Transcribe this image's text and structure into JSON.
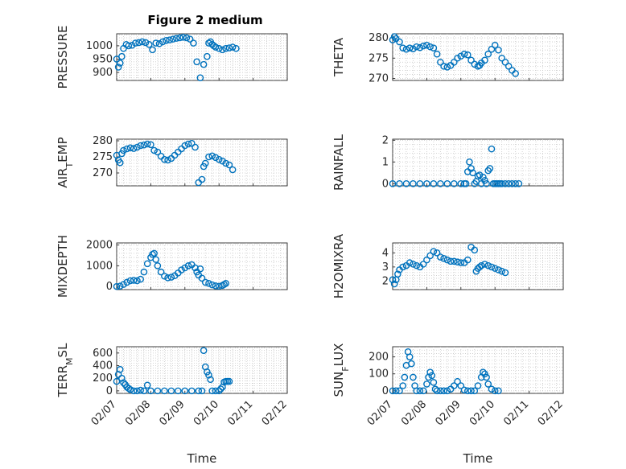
{
  "title": "Figure 2 medium",
  "xlabel": "Time",
  "marker_color": "#0072bd",
  "x_tick_labels": [
    "02/07",
    "02/08",
    "02/09",
    "02/10",
    "02/11",
    "02/12"
  ],
  "chart_data": [
    {
      "type": "scatter",
      "ylabel": "PRESSURE",
      "ylim": [
        870,
        1045
      ],
      "yticks": [
        900,
        950,
        1000
      ],
      "grid": true,
      "x": [
        0.0,
        0.05,
        0.1,
        0.15,
        0.2,
        0.28,
        0.35,
        0.45,
        0.55,
        0.65,
        0.75,
        0.85,
        0.95,
        1.05,
        1.15,
        1.25,
        1.35,
        1.45,
        1.55,
        1.65,
        1.75,
        1.85,
        1.95,
        2.05,
        2.15,
        2.25,
        2.35,
        2.45,
        2.55,
        2.65,
        2.7,
        2.75,
        2.8,
        2.85,
        2.9,
        3.0,
        3.1,
        3.2,
        3.3,
        3.4,
        3.5
      ],
      "y": [
        950,
        920,
        935,
        960,
        990,
        1005,
        1000,
        1002,
        1010,
        1012,
        1015,
        1012,
        1005,
        985,
        1010,
        1008,
        1015,
        1020,
        1022,
        1025,
        1028,
        1030,
        1032,
        1030,
        1025,
        1010,
        940,
        880,
        930,
        960,
        1010,
        1015,
        1005,
        1000,
        995,
        990,
        985,
        990,
        992,
        995,
        990
      ]
    },
    {
      "type": "scatter",
      "ylabel": "THETA",
      "ylim": [
        269.5,
        281
      ],
      "yticks": [
        270,
        275,
        280
      ],
      "grid": true,
      "x": [
        0.0,
        0.05,
        0.1,
        0.2,
        0.3,
        0.4,
        0.5,
        0.6,
        0.7,
        0.8,
        0.9,
        1.0,
        1.1,
        1.2,
        1.3,
        1.4,
        1.5,
        1.6,
        1.7,
        1.8,
        1.9,
        2.0,
        2.1,
        2.2,
        2.3,
        2.4,
        2.5,
        2.55,
        2.6,
        2.7,
        2.8,
        2.9,
        3.0,
        3.1,
        3.2,
        3.3,
        3.4,
        3.5,
        3.6
      ],
      "y": [
        279.5,
        280.3,
        279.8,
        279,
        277.5,
        277.2,
        277.5,
        277.3,
        277.8,
        277.6,
        278,
        278.2,
        277.8,
        277.5,
        276,
        274,
        273,
        272.8,
        273.2,
        274,
        275,
        275.5,
        276,
        275.8,
        274.5,
        273.5,
        273,
        273.2,
        273.8,
        274.5,
        276,
        277.2,
        278.2,
        277,
        275,
        274,
        273,
        272,
        271.2
      ]
    },
    {
      "type": "scatter",
      "ylabel": "AIR_TEMP",
      "ylim": [
        266,
        280.5
      ],
      "yticks": [
        270,
        275,
        280
      ],
      "grid": true,
      "x": [
        0.0,
        0.05,
        0.1,
        0.15,
        0.2,
        0.3,
        0.4,
        0.5,
        0.6,
        0.7,
        0.8,
        0.9,
        1.0,
        1.1,
        1.2,
        1.3,
        1.4,
        1.5,
        1.6,
        1.7,
        1.8,
        1.9,
        2.0,
        2.1,
        2.2,
        2.3,
        2.4,
        2.5,
        2.55,
        2.6,
        2.7,
        2.8,
        2.9,
        3.0,
        3.1,
        3.2,
        3.3,
        3.4
      ],
      "y": [
        275.5,
        274,
        273.2,
        276,
        277,
        277.5,
        277.8,
        277.6,
        278,
        278.5,
        278.7,
        279,
        278.8,
        277,
        276.5,
        275.2,
        274.2,
        274,
        274.5,
        275.5,
        276.5,
        277.5,
        278.5,
        279,
        279.2,
        278,
        267,
        268,
        272,
        273,
        275,
        275.3,
        274.8,
        274.2,
        273.7,
        273,
        272.5,
        271
      ]
    },
    {
      "type": "scatter",
      "ylabel": "RAINFALL",
      "ylim": [
        -0.1,
        2.05
      ],
      "yticks": [
        0,
        1,
        2
      ],
      "grid": true,
      "x": [
        0.0,
        0.2,
        0.4,
        0.6,
        0.8,
        1.0,
        1.2,
        1.4,
        1.6,
        1.8,
        2.0,
        2.1,
        2.15,
        2.2,
        2.25,
        2.3,
        2.35,
        2.4,
        2.45,
        2.5,
        2.55,
        2.6,
        2.65,
        2.7,
        2.75,
        2.8,
        2.85,
        2.9,
        2.95,
        3.0,
        3.05,
        3.1,
        3.15,
        3.2,
        3.3,
        3.4,
        3.5,
        3.6,
        3.7
      ],
      "y": [
        0,
        0,
        0,
        0,
        0,
        0,
        0,
        0,
        0,
        0,
        0,
        0,
        0,
        0.55,
        1.0,
        0.7,
        0.5,
        0,
        0.1,
        0.35,
        0.4,
        0,
        0.3,
        0.15,
        0,
        0.6,
        0.7,
        1.6,
        0,
        0,
        0,
        0,
        0,
        0,
        0,
        0,
        0,
        0,
        0
      ]
    },
    {
      "type": "scatter",
      "ylabel": "MIXDEPTH",
      "ylim": [
        -150,
        2100
      ],
      "yticks": [
        0,
        1000,
        2000
      ],
      "grid": true,
      "x": [
        0.0,
        0.1,
        0.2,
        0.3,
        0.4,
        0.5,
        0.6,
        0.7,
        0.8,
        0.9,
        1.0,
        1.05,
        1.1,
        1.15,
        1.2,
        1.3,
        1.4,
        1.5,
        1.6,
        1.7,
        1.8,
        1.9,
        2.0,
        2.1,
        2.2,
        2.3,
        2.35,
        2.4,
        2.45,
        2.5,
        2.6,
        2.7,
        2.8,
        2.9,
        3.0,
        3.1,
        3.15,
        3.2
      ],
      "y": [
        0,
        20,
        100,
        200,
        280,
        300,
        280,
        350,
        700,
        1100,
        1400,
        1550,
        1600,
        1300,
        1000,
        700,
        500,
        420,
        450,
        520,
        650,
        800,
        900,
        1000,
        1050,
        900,
        700,
        550,
        850,
        400,
        200,
        150,
        80,
        30,
        10,
        50,
        100,
        150
      ]
    },
    {
      "type": "scatter",
      "ylabel": "H2OMIXRA",
      "ylim": [
        1.4,
        4.7
      ],
      "yticks": [
        2,
        3,
        4
      ],
      "grid": true,
      "x": [
        0.0,
        0.05,
        0.1,
        0.15,
        0.2,
        0.3,
        0.4,
        0.5,
        0.6,
        0.7,
        0.8,
        0.9,
        1.0,
        1.1,
        1.2,
        1.3,
        1.4,
        1.5,
        1.6,
        1.7,
        1.8,
        1.9,
        2.0,
        2.1,
        2.2,
        2.3,
        2.4,
        2.45,
        2.5,
        2.55,
        2.6,
        2.7,
        2.8,
        2.9,
        3.0,
        3.1,
        3.2,
        3.3
      ],
      "y": [
        2.1,
        1.8,
        2.1,
        2.5,
        2.8,
        3.0,
        3.1,
        3.3,
        3.2,
        3.1,
        3.0,
        3.2,
        3.5,
        3.8,
        4.1,
        4.0,
        3.7,
        3.6,
        3.5,
        3.4,
        3.4,
        3.35,
        3.3,
        3.3,
        3.5,
        4.4,
        4.2,
        2.7,
        2.9,
        3.0,
        3.1,
        3.2,
        3.1,
        3.0,
        2.9,
        2.8,
        2.7,
        2.6
      ]
    },
    {
      "type": "scatter",
      "ylabel": "TERR_MSL",
      "ylim": [
        -40,
        700
      ],
      "yticks": [
        0,
        200,
        400,
        600
      ],
      "grid": true,
      "x": [
        0.0,
        0.05,
        0.1,
        0.15,
        0.2,
        0.25,
        0.3,
        0.35,
        0.4,
        0.5,
        0.6,
        0.7,
        0.8,
        0.9,
        1.0,
        1.2,
        1.4,
        1.6,
        1.8,
        2.0,
        2.2,
        2.4,
        2.5,
        2.55,
        2.6,
        2.65,
        2.7,
        2.75,
        2.8,
        2.9,
        3.0,
        3.05,
        3.1,
        3.15,
        3.2,
        3.25,
        3.3
      ],
      "y": [
        150,
        260,
        340,
        200,
        130,
        100,
        60,
        40,
        20,
        0,
        0,
        10,
        0,
        90,
        0,
        0,
        0,
        0,
        0,
        0,
        0,
        0,
        0,
        640,
        380,
        300,
        250,
        180,
        0,
        0,
        0,
        30,
        60,
        140,
        150,
        150,
        150
      ]
    },
    {
      "type": "scatter",
      "ylabel": "SUN_FLUX",
      "ylim": [
        -15,
        260
      ],
      "yticks": [
        0,
        100,
        200
      ],
      "grid": true,
      "x": [
        0.0,
        0.1,
        0.2,
        0.3,
        0.35,
        0.4,
        0.45,
        0.5,
        0.55,
        0.6,
        0.65,
        0.7,
        0.8,
        0.9,
        1.0,
        1.05,
        1.1,
        1.15,
        1.2,
        1.25,
        1.3,
        1.4,
        1.5,
        1.6,
        1.7,
        1.8,
        1.9,
        2.0,
        2.1,
        2.2,
        2.3,
        2.4,
        2.5,
        2.6,
        2.65,
        2.7,
        2.75,
        2.8,
        2.9,
        3.0,
        3.1
      ],
      "y": [
        0,
        0,
        0,
        30,
        80,
        150,
        230,
        200,
        160,
        80,
        30,
        0,
        0,
        0,
        40,
        80,
        110,
        90,
        50,
        10,
        0,
        0,
        0,
        0,
        10,
        30,
        55,
        30,
        5,
        0,
        0,
        0,
        30,
        80,
        110,
        100,
        80,
        40,
        10,
        0,
        0
      ]
    }
  ]
}
